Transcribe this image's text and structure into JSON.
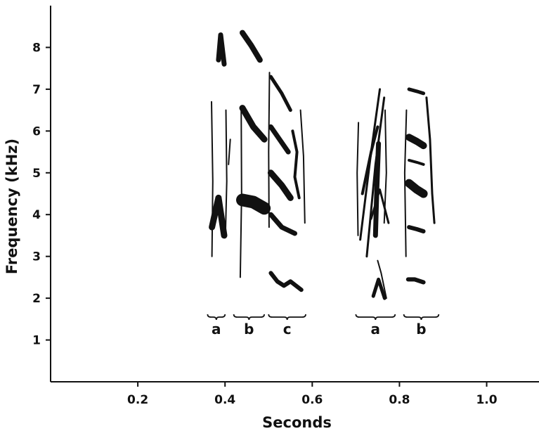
{
  "chart_data": {
    "type": "spectrogram",
    "xlabel": "Seconds",
    "ylabel": "Frequency (kHz)",
    "xlim": [
      0.0,
      1.12
    ],
    "ylim": [
      0.0,
      9.0
    ],
    "xticks": [
      {
        "value": 0.2,
        "label": "0.2"
      },
      {
        "value": 0.4,
        "label": "0.4"
      },
      {
        "value": 0.6,
        "label": "0.6"
      },
      {
        "value": 0.8,
        "label": "0.8"
      },
      {
        "value": 1.0,
        "label": "1.0"
      }
    ],
    "yticks": [
      {
        "value": 1,
        "label": "1"
      },
      {
        "value": 2,
        "label": "2"
      },
      {
        "value": 3,
        "label": "3"
      },
      {
        "value": 4,
        "label": "4"
      },
      {
        "value": 5,
        "label": "5"
      },
      {
        "value": 6,
        "label": "6"
      },
      {
        "value": 7,
        "label": "7"
      },
      {
        "value": 8,
        "label": "8"
      }
    ],
    "segments": [
      {
        "label": "a",
        "x0": 0.36,
        "x1": 0.4
      },
      {
        "label": "b",
        "x0": 0.42,
        "x1": 0.49
      },
      {
        "label": "c",
        "x0": 0.5,
        "x1": 0.585
      },
      {
        "label": "a",
        "x0": 0.7,
        "x1": 0.79
      },
      {
        "label": "b",
        "x0": 0.81,
        "x1": 0.89
      }
    ],
    "traces": [
      {
        "width": 7,
        "points": [
          [
            0.385,
            7.7
          ],
          [
            0.39,
            8.3
          ],
          [
            0.398,
            7.6
          ]
        ]
      },
      {
        "width": 9,
        "points": [
          [
            0.37,
            3.7
          ],
          [
            0.385,
            4.4
          ],
          [
            0.398,
            3.5
          ]
        ]
      },
      {
        "width": 2,
        "points": [
          [
            0.37,
            3.0
          ],
          [
            0.372,
            4.8
          ],
          [
            0.369,
            6.7
          ]
        ]
      },
      {
        "width": 2,
        "points": [
          [
            0.401,
            3.5
          ],
          [
            0.404,
            4.8
          ],
          [
            0.402,
            6.5
          ]
        ]
      },
      {
        "width": 2,
        "points": [
          [
            0.408,
            5.2
          ],
          [
            0.412,
            5.8
          ]
        ]
      },
      {
        "width": 8,
        "points": [
          [
            0.44,
            8.35
          ],
          [
            0.46,
            8.05
          ],
          [
            0.48,
            7.7
          ]
        ]
      },
      {
        "width": 9,
        "points": [
          [
            0.44,
            6.55
          ],
          [
            0.465,
            6.1
          ],
          [
            0.49,
            5.8
          ]
        ]
      },
      {
        "width": 18,
        "points": [
          [
            0.44,
            4.35
          ],
          [
            0.465,
            4.3
          ],
          [
            0.49,
            4.15
          ]
        ]
      },
      {
        "width": 2,
        "points": [
          [
            0.435,
            2.5
          ],
          [
            0.438,
            4.5
          ],
          [
            0.437,
            6.6
          ]
        ]
      },
      {
        "width": 5,
        "points": [
          [
            0.505,
            7.3
          ],
          [
            0.53,
            6.9
          ],
          [
            0.55,
            6.5
          ]
        ]
      },
      {
        "width": 7,
        "points": [
          [
            0.505,
            6.1
          ],
          [
            0.525,
            5.8
          ],
          [
            0.545,
            5.5
          ]
        ]
      },
      {
        "width": 9,
        "points": [
          [
            0.505,
            5.0
          ],
          [
            0.53,
            4.7
          ],
          [
            0.55,
            4.4
          ]
        ]
      },
      {
        "width": 7,
        "points": [
          [
            0.505,
            4.0
          ],
          [
            0.53,
            3.7
          ],
          [
            0.56,
            3.55
          ]
        ]
      },
      {
        "width": 6,
        "points": [
          [
            0.505,
            2.6
          ],
          [
            0.52,
            2.4
          ],
          [
            0.535,
            2.3
          ],
          [
            0.55,
            2.4
          ],
          [
            0.575,
            2.2
          ]
        ]
      },
      {
        "width": 4,
        "points": [
          [
            0.555,
            6.0
          ],
          [
            0.565,
            5.5
          ],
          [
            0.56,
            4.9
          ],
          [
            0.57,
            4.4
          ]
        ]
      },
      {
        "width": 2,
        "points": [
          [
            0.573,
            6.5
          ],
          [
            0.58,
            5.4
          ],
          [
            0.583,
            3.8
          ]
        ]
      },
      {
        "width": 2,
        "points": [
          [
            0.501,
            3.7
          ],
          [
            0.5,
            5.5
          ],
          [
            0.502,
            7.4
          ]
        ]
      },
      {
        "width": 2,
        "points": [
          [
            0.705,
            3.5
          ],
          [
            0.703,
            5.0
          ],
          [
            0.706,
            6.2
          ]
        ]
      },
      {
        "width": 3,
        "points": [
          [
            0.71,
            3.4
          ],
          [
            0.735,
            5.5
          ],
          [
            0.755,
            7.0
          ]
        ]
      },
      {
        "width": 3,
        "points": [
          [
            0.725,
            3.0
          ],
          [
            0.745,
            5.2
          ],
          [
            0.765,
            6.8
          ]
        ]
      },
      {
        "width": 4,
        "points": [
          [
            0.715,
            4.5
          ],
          [
            0.735,
            5.5
          ],
          [
            0.75,
            6.1
          ]
        ]
      },
      {
        "width": 7,
        "points": [
          [
            0.745,
            3.5
          ],
          [
            0.748,
            4.6
          ],
          [
            0.752,
            5.7
          ]
        ]
      },
      {
        "width": 3,
        "points": [
          [
            0.735,
            3.9
          ],
          [
            0.755,
            4.6
          ],
          [
            0.775,
            3.8
          ]
        ]
      },
      {
        "width": 2,
        "points": [
          [
            0.765,
            3.8
          ],
          [
            0.77,
            5.0
          ],
          [
            0.767,
            6.5
          ]
        ]
      },
      {
        "width": 2,
        "points": [
          [
            0.75,
            2.9
          ],
          [
            0.758,
            2.6
          ],
          [
            0.77,
            2.0
          ]
        ]
      },
      {
        "width": 5,
        "points": [
          [
            0.74,
            2.05
          ],
          [
            0.752,
            2.45
          ],
          [
            0.766,
            2.0
          ]
        ]
      },
      {
        "width": 2,
        "points": [
          [
            0.815,
            3.0
          ],
          [
            0.812,
            5.0
          ],
          [
            0.816,
            6.5
          ]
        ]
      },
      {
        "width": 5,
        "points": [
          [
            0.822,
            7.0
          ],
          [
            0.84,
            6.95
          ],
          [
            0.855,
            6.9
          ]
        ]
      },
      {
        "width": 10,
        "points": [
          [
            0.822,
            5.85
          ],
          [
            0.84,
            5.75
          ],
          [
            0.855,
            5.65
          ]
        ]
      },
      {
        "width": 4,
        "points": [
          [
            0.822,
            5.3
          ],
          [
            0.84,
            5.25
          ],
          [
            0.855,
            5.2
          ]
        ]
      },
      {
        "width": 12,
        "points": [
          [
            0.822,
            4.75
          ],
          [
            0.84,
            4.6
          ],
          [
            0.855,
            4.5
          ]
        ]
      },
      {
        "width": 6,
        "points": [
          [
            0.822,
            3.7
          ],
          [
            0.84,
            3.65
          ],
          [
            0.855,
            3.6
          ]
        ]
      },
      {
        "width": 3,
        "points": [
          [
            0.862,
            6.8
          ],
          [
            0.87,
            5.8
          ],
          [
            0.875,
            4.5
          ],
          [
            0.88,
            3.8
          ]
        ]
      },
      {
        "width": 6,
        "points": [
          [
            0.82,
            2.45
          ],
          [
            0.835,
            2.45
          ],
          [
            0.855,
            2.38
          ]
        ]
      }
    ]
  }
}
